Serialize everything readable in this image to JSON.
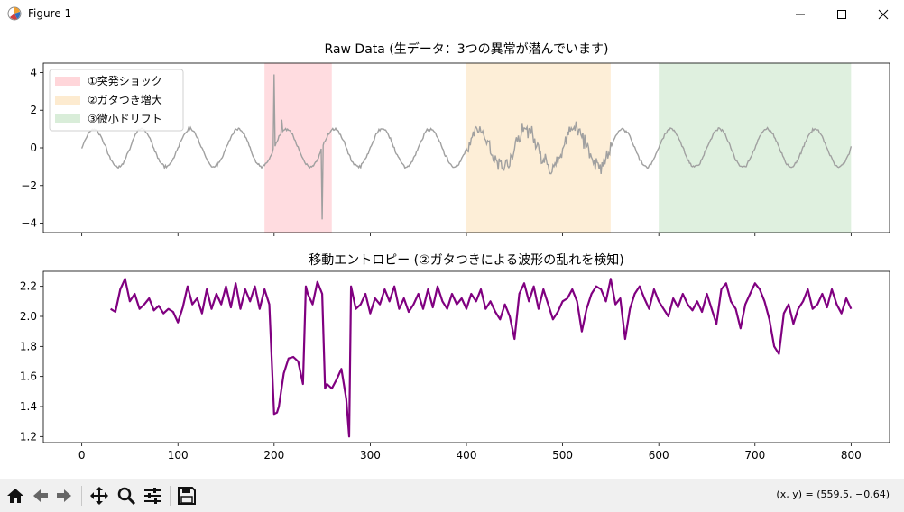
{
  "window": {
    "title": "Figure 1"
  },
  "toolbar": {
    "buttons": [
      {
        "name": "home",
        "icon": "home-icon"
      },
      {
        "name": "back",
        "icon": "arrow-left-icon"
      },
      {
        "name": "forward",
        "icon": "arrow-right-icon"
      },
      {
        "name": "pan",
        "icon": "move-icon"
      },
      {
        "name": "zoom",
        "icon": "zoom-icon"
      },
      {
        "name": "configure",
        "icon": "sliders-icon"
      },
      {
        "name": "save",
        "icon": "save-icon"
      }
    ],
    "coords": "(x, y) = (559.5, −0.64)"
  },
  "chart_data": [
    {
      "type": "line",
      "title": "Raw Data (生データ：3つの異常が潜んでいます)",
      "xlim": [
        -40,
        840
      ],
      "ylim": [
        -4.5,
        4.5
      ],
      "yticks": [
        -4,
        -2,
        0,
        2,
        4
      ],
      "xticks": [
        0,
        100,
        200,
        300,
        400,
        500,
        600,
        700,
        800
      ],
      "xticklabels_visible": false,
      "series": [
        {
          "color": "#a0a0a0",
          "description": "sinusoid period ~50, amplitude ~1 with noise"
        }
      ],
      "spikes": [
        {
          "x": 200,
          "y": 3.9
        },
        {
          "x": 208,
          "y": 1.5
        },
        {
          "x": 250,
          "y": -3.8
        }
      ],
      "regions": [
        {
          "label": "①突発ショック",
          "x0": 190,
          "x1": 260,
          "color": "#ffd6da"
        },
        {
          "label": "②ガタつき増大",
          "x0": 400,
          "x1": 550,
          "color": "#fdebd0"
        },
        {
          "label": "③微小ドリフト",
          "x0": 600,
          "x1": 800,
          "color": "#d9edd9"
        }
      ],
      "legend": {
        "loc": "upper-left"
      }
    },
    {
      "type": "line",
      "title": "移動エントロピー (②ガタつきによる波形の乱れを検知)",
      "xlim": [
        -40,
        840
      ],
      "ylim": [
        1.16,
        2.3
      ],
      "yticks": [
        1.2,
        1.4,
        1.6,
        1.8,
        2.0,
        2.2
      ],
      "yticklabels": [
        "1.2",
        "1.4",
        "1.6",
        "1.8",
        "2.0",
        "2.2"
      ],
      "xticks": [
        0,
        100,
        200,
        300,
        400,
        500,
        600,
        700,
        800
      ],
      "series": [
        {
          "color": "#800080",
          "x": [
            30,
            35,
            40,
            45,
            50,
            55,
            60,
            65,
            70,
            75,
            80,
            85,
            90,
            95,
            100,
            105,
            110,
            115,
            120,
            125,
            130,
            135,
            140,
            145,
            150,
            155,
            160,
            165,
            170,
            175,
            180,
            185,
            190,
            195,
            200,
            203,
            205,
            210,
            215,
            220,
            225,
            230,
            233,
            235,
            240,
            245,
            250,
            253,
            255,
            260,
            265,
            270,
            275,
            278,
            280,
            285,
            290,
            295,
            300,
            305,
            310,
            315,
            320,
            325,
            330,
            335,
            340,
            345,
            350,
            355,
            360,
            365,
            370,
            375,
            380,
            385,
            390,
            395,
            400,
            405,
            410,
            415,
            420,
            425,
            430,
            435,
            440,
            445,
            450,
            455,
            460,
            465,
            470,
            475,
            480,
            485,
            490,
            495,
            500,
            505,
            510,
            515,
            520,
            525,
            530,
            535,
            540,
            545,
            550,
            555,
            560,
            565,
            570,
            575,
            580,
            585,
            590,
            595,
            600,
            605,
            610,
            615,
            620,
            625,
            630,
            635,
            640,
            645,
            650,
            655,
            660,
            665,
            670,
            675,
            680,
            685,
            690,
            695,
            700,
            705,
            710,
            715,
            720,
            725,
            730,
            735,
            740,
            745,
            750,
            755,
            760,
            765,
            770,
            775,
            780,
            785,
            790,
            795,
            800
          ],
          "y": [
            2.05,
            2.03,
            2.18,
            2.25,
            2.1,
            2.15,
            2.05,
            2.08,
            2.12,
            2.04,
            2.07,
            2.02,
            2.05,
            2.03,
            1.96,
            2.06,
            2.2,
            2.08,
            2.12,
            2.02,
            2.18,
            2.05,
            2.15,
            2.08,
            2.2,
            2.06,
            2.22,
            2.05,
            2.18,
            2.1,
            2.2,
            2.05,
            2.18,
            2.08,
            1.35,
            1.36,
            1.4,
            1.62,
            1.72,
            1.73,
            1.7,
            1.55,
            2.2,
            2.15,
            2.08,
            2.23,
            2.15,
            1.52,
            1.55,
            1.52,
            1.58,
            1.65,
            1.45,
            1.2,
            2.2,
            2.05,
            2.08,
            2.15,
            2.02,
            2.12,
            2.08,
            2.18,
            2.1,
            2.2,
            2.05,
            2.12,
            2.03,
            2.08,
            2.15,
            2.05,
            2.18,
            2.06,
            2.2,
            2.1,
            2.05,
            2.15,
            2.08,
            2.12,
            2.05,
            2.15,
            2.1,
            2.18,
            2.05,
            2.1,
            2.03,
            1.98,
            2.08,
            2.0,
            1.85,
            2.15,
            2.22,
            2.1,
            2.2,
            2.05,
            2.18,
            2.08,
            1.98,
            2.03,
            2.1,
            2.12,
            2.18,
            2.1,
            1.9,
            2.05,
            2.15,
            2.2,
            2.18,
            2.1,
            2.25,
            2.08,
            2.12,
            1.85,
            2.05,
            2.15,
            2.2,
            2.12,
            2.05,
            2.18,
            2.1,
            2.05,
            2.0,
            2.12,
            2.06,
            2.15,
            2.08,
            2.04,
            2.1,
            2.03,
            2.15,
            2.05,
            1.95,
            2.18,
            2.22,
            2.1,
            2.05,
            1.92,
            2.08,
            2.15,
            2.22,
            2.18,
            2.1,
            1.98,
            1.8,
            1.75,
            2.02,
            2.08,
            1.95,
            2.05,
            2.1,
            2.18,
            2.05,
            2.08,
            2.15,
            2.06,
            2.18,
            2.08,
            2.02,
            2.12,
            2.05
          ]
        }
      ]
    }
  ]
}
